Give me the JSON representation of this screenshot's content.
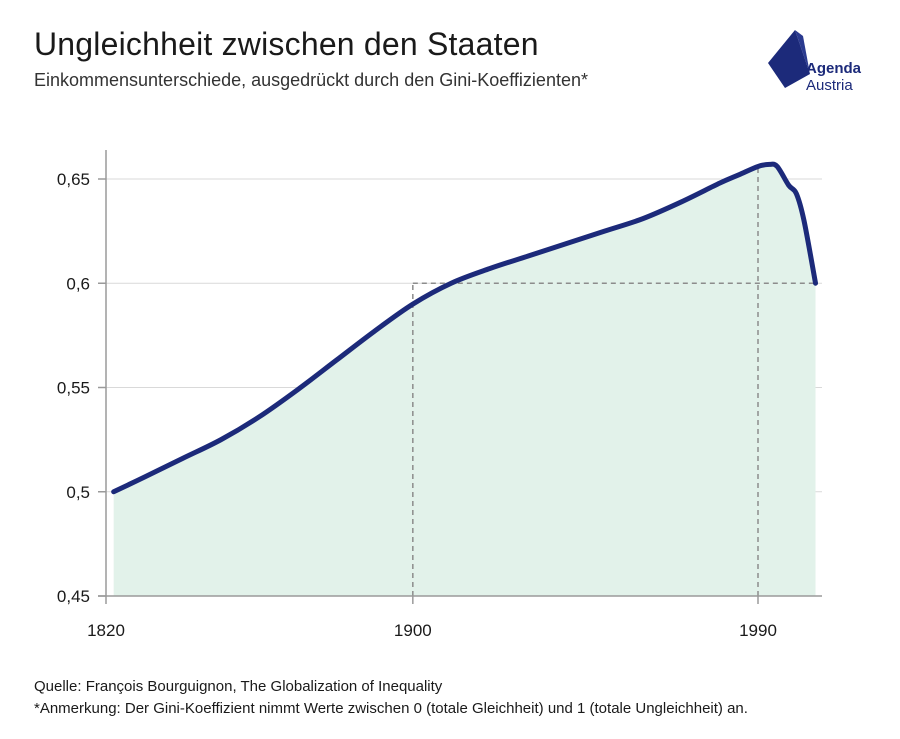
{
  "header": {
    "title": "Ungleichheit zwischen den Staaten",
    "subtitle": "Einkommensunterschiede, ausgedrückt durch den Gini-Koeffizienten*"
  },
  "logo": {
    "line1": "Agenda",
    "line2": "Austria",
    "color": "#1c2a7a"
  },
  "footer": {
    "source": "Quelle: François Bourguignon, The Globalization of Inequality",
    "note": "*Anmerkung: Der Gini-Koeffizient nimmt Werte zwischen 0 (totale Gleichheit) und 1 (totale Ungleichheit) an."
  },
  "chart_data": {
    "type": "area",
    "title": "",
    "xlabel": "",
    "ylabel": "",
    "xlim": [
      1820,
      2008
    ],
    "ylim": [
      0.45,
      0.665
    ],
    "x_ticks": [
      1820,
      1900,
      1990
    ],
    "x_tick_labels": [
      "1820",
      "1900",
      "1990"
    ],
    "y_ticks": [
      0.45,
      0.5,
      0.55,
      0.6,
      0.65
    ],
    "y_tick_labels": [
      "0,45",
      "0,5",
      "0,55",
      "0,6",
      "0,65"
    ],
    "grid": true,
    "colors": {
      "line": "#1c2a7a",
      "fill": "#e2f2ea",
      "grid": "#d9d9d9",
      "reference": "#8c8c8c"
    },
    "series": [
      {
        "x": [
          1822,
          1830,
          1840,
          1850,
          1860,
          1870,
          1880,
          1890,
          1900,
          1910,
          1920,
          1930,
          1940,
          1950,
          1960,
          1970,
          1980,
          1985,
          1990,
          1993,
          1995,
          1998,
          2000,
          2002,
          2005
        ],
        "y": [
          0.5,
          0.507,
          0.516,
          0.525,
          0.536,
          0.549,
          0.563,
          0.577,
          0.59,
          0.6,
          0.607,
          0.613,
          0.619,
          0.625,
          0.631,
          0.639,
          0.648,
          0.652,
          0.656,
          0.657,
          0.656,
          0.647,
          0.643,
          0.63,
          0.6
        ]
      }
    ],
    "reference_lines": [
      {
        "x": 1900,
        "y": 0.6
      },
      {
        "x": 1990,
        "y": 0.657
      },
      {
        "y": 0.6,
        "x_from": 1900,
        "x_to": 2005
      }
    ]
  }
}
